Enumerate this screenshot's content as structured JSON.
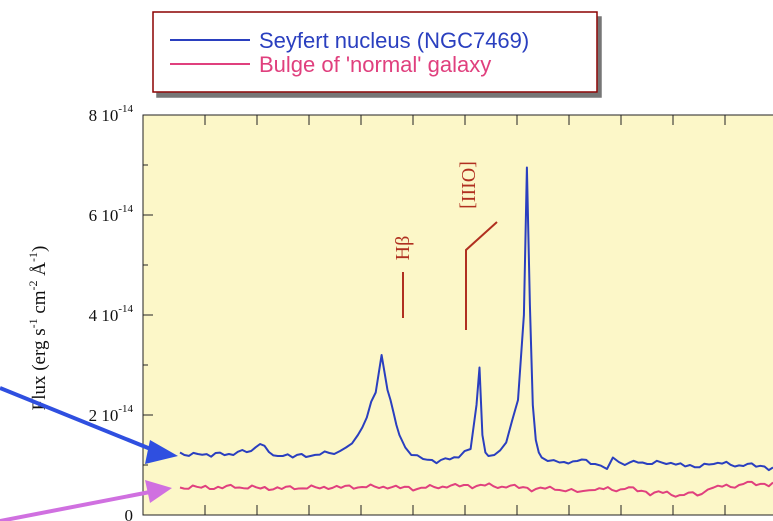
{
  "chart_data": {
    "type": "line",
    "ylabel": "Flux (erg s-1 cm-2 Å-1)",
    "ylabel_parts": [
      "Flux (erg s",
      "-1",
      " cm",
      "-2",
      " Å",
      "-1",
      ")"
    ],
    "ylim": [
      0,
      8e-14
    ],
    "yticks": [
      {
        "value": 0,
        "mant": "0",
        "exp": ""
      },
      {
        "value": 2e-14,
        "mant": "2 10",
        "exp": "-14"
      },
      {
        "value": 4e-14,
        "mant": "4 10",
        "exp": "-14"
      },
      {
        "value": 6e-14,
        "mant": "6 10",
        "exp": "-14"
      },
      {
        "value": 8e-14,
        "mant": "8 10",
        "exp": "-14"
      }
    ],
    "grid": false,
    "legend_position": "top-center",
    "x_ticks_count": 13,
    "series": [
      {
        "name": "Seyfert nucleus (NGC7469)",
        "color": "#2a3fbf",
        "x": [
          0.0,
          0.03,
          0.06,
          0.09,
          0.12,
          0.135,
          0.15,
          0.165,
          0.19,
          0.22,
          0.26,
          0.28,
          0.3,
          0.315,
          0.33,
          0.34,
          0.35,
          0.355,
          0.36,
          0.365,
          0.37,
          0.38,
          0.39,
          0.41,
          0.44,
          0.47,
          0.49,
          0.5,
          0.505,
          0.51,
          0.515,
          0.52,
          0.53,
          0.55,
          0.57,
          0.58,
          0.585,
          0.59,
          0.595,
          0.6,
          0.605,
          0.61,
          0.62,
          0.64,
          0.67,
          0.7,
          0.72,
          0.73,
          0.75,
          0.78,
          0.82,
          0.86,
          0.9,
          0.95,
          1.0
        ],
        "values": [
          1.25e-14,
          1.22e-14,
          1.24e-14,
          1.2e-14,
          1.28e-14,
          1.42e-14,
          1.26e-14,
          1.18e-14,
          1.15e-14,
          1.18e-14,
          1.22e-14,
          1.35e-14,
          1.6e-14,
          1.95e-14,
          2.45e-14,
          3.2e-14,
          2.5e-14,
          2.3e-14,
          2.05e-14,
          1.8e-14,
          1.6e-14,
          1.35e-14,
          1.2e-14,
          1.12e-14,
          1.1e-14,
          1.15e-14,
          1.32e-14,
          2.2e-14,
          2.95e-14,
          1.6e-14,
          1.25e-14,
          1.18e-14,
          1.2e-14,
          1.45e-14,
          2.3e-14,
          4e-14,
          6.95e-14,
          4.2e-14,
          2.2e-14,
          1.5e-14,
          1.25e-14,
          1.15e-14,
          1.08e-14,
          1.05e-14,
          1.08e-14,
          1.02e-14,
          9.2e-15,
          1.15e-14,
          1e-14,
          1.05e-14,
          1.02e-14,
          1e-14,
          1.02e-14,
          9.8e-15,
          9.5e-15
        ]
      },
      {
        "name": "Bulge of 'normal' galaxy",
        "color": "#e0407e",
        "x": [
          0.0,
          0.05,
          0.1,
          0.15,
          0.2,
          0.25,
          0.3,
          0.35,
          0.4,
          0.45,
          0.5,
          0.55,
          0.6,
          0.64,
          0.66,
          0.68,
          0.7,
          0.75,
          0.8,
          0.85,
          0.88,
          0.9,
          0.95,
          1.0
        ],
        "values": [
          5.5e-15,
          5.2e-15,
          5.5e-15,
          5e-15,
          5.3e-15,
          5.2e-15,
          5.5e-15,
          5.3e-15,
          5.2e-15,
          5.5e-15,
          5.8e-15,
          5.5e-15,
          5.2e-15,
          5e-15,
          5.2e-15,
          4.8e-15,
          5e-15,
          5.2e-15,
          4.5e-15,
          4e-15,
          4.2e-15,
          5.5e-15,
          6.2e-15,
          6.5e-15
        ]
      }
    ],
    "annotations": [
      {
        "text": "Hβ",
        "color": "#b03020"
      },
      {
        "text": "[OIII]",
        "color": "#b03020"
      }
    ]
  },
  "style": {
    "plot_background": "#fcf7c8",
    "legend_background": "#ffffff",
    "legend_border": "#8b0000",
    "annotation_color": "#b03020",
    "arrow_blue": "#2f4fe0",
    "arrow_magenta": "#d070e0"
  }
}
